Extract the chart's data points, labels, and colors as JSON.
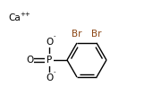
{
  "bg_color": "#ffffff",
  "line_color": "#000000",
  "br_color": "#8B4513",
  "text_color": "#000000",
  "figsize": [
    1.8,
    1.25
  ],
  "dpi": 100,
  "Ca_label": "Ca",
  "Ca_sup": "++",
  "O_top_label": "O",
  "O_top_sup": "-",
  "O_bot_label": "O",
  "O_bot_sup": "-",
  "O_double_label": "O",
  "P_label": "P",
  "Br1_label": "Br",
  "Br2_label": "Br",
  "line_width": 1.0
}
